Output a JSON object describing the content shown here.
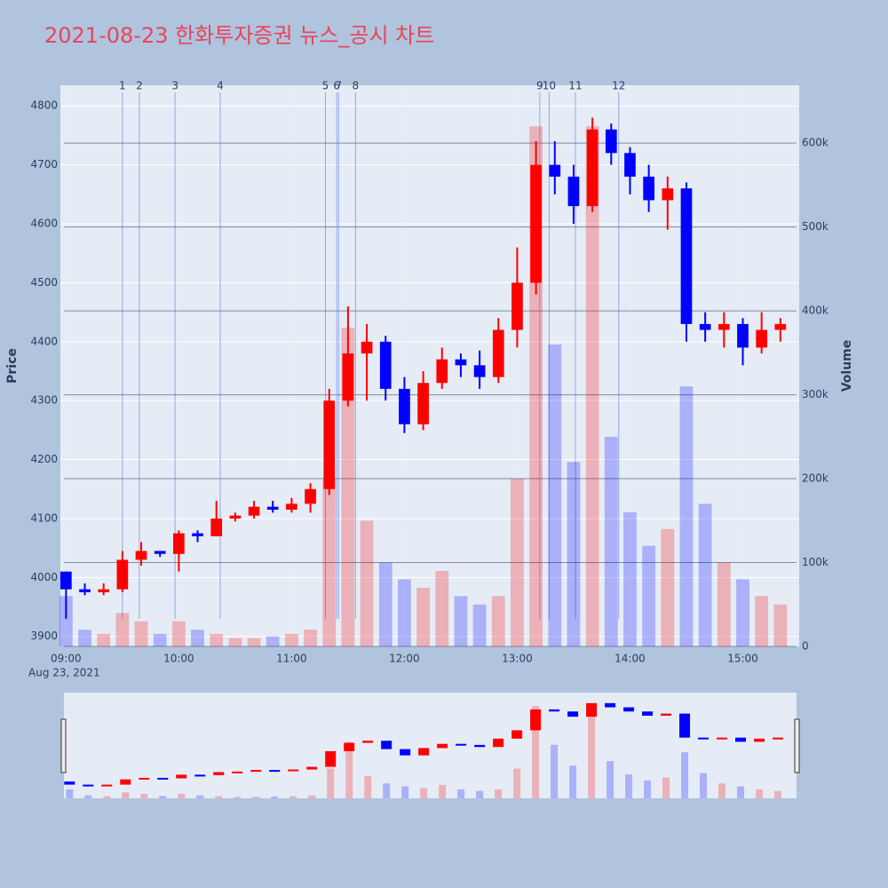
{
  "chart_data": {
    "type": "candlestick",
    "title": "2021-08-23 한화투자증권 뉴스_공시 차트",
    "y_label": "Price",
    "y2_label": "Volume",
    "date_label": "Aug 23, 2021",
    "increasing_color": "#ff0000",
    "decreasing_color": "#0000ff",
    "x": [
      "09:00",
      "09:10",
      "09:20",
      "09:30",
      "09:40",
      "09:50",
      "10:00",
      "10:10",
      "10:20",
      "10:30",
      "10:40",
      "10:50",
      "11:00",
      "11:10",
      "11:20",
      "11:30",
      "11:40",
      "11:50",
      "12:00",
      "12:10",
      "12:20",
      "12:30",
      "12:40",
      "12:50",
      "13:00",
      "13:10",
      "13:20",
      "13:30",
      "13:40",
      "13:50",
      "14:00",
      "14:10",
      "14:20",
      "14:30",
      "14:40",
      "14:50",
      "15:00",
      "15:10",
      "15:20"
    ],
    "open": [
      4010,
      3980,
      3975,
      3980,
      4030,
      4045,
      4040,
      4075,
      4070,
      4100,
      4105,
      4120,
      4115,
      4125,
      4150,
      4300,
      4380,
      4400,
      4320,
      4260,
      4330,
      4370,
      4360,
      4340,
      4420,
      4500,
      4700,
      4680,
      4630,
      4760,
      4720,
      4680,
      4640,
      4660,
      4430,
      4420,
      4430,
      4390,
      4420
    ],
    "high": [
      4010,
      3990,
      3990,
      4045,
      4060,
      4045,
      4080,
      4080,
      4130,
      4110,
      4130,
      4130,
      4135,
      4160,
      4320,
      4460,
      4430,
      4410,
      4340,
      4350,
      4390,
      4380,
      4385,
      4440,
      4560,
      4740,
      4740,
      4700,
      4780,
      4770,
      4730,
      4700,
      4680,
      4670,
      4450,
      4450,
      4440,
      4450,
      4440
    ],
    "low": [
      3930,
      3970,
      3970,
      3975,
      4020,
      4035,
      4010,
      4060,
      4070,
      4095,
      4100,
      4110,
      4110,
      4110,
      4140,
      4290,
      4300,
      4300,
      4245,
      4250,
      4320,
      4340,
      4320,
      4330,
      4390,
      4480,
      4650,
      4600,
      4620,
      4700,
      4650,
      4620,
      4590,
      4400,
      4400,
      4390,
      4360,
      4380,
      4400
    ],
    "close": [
      3980,
      3975,
      3980,
      4030,
      4045,
      4040,
      4075,
      4070,
      4100,
      4105,
      4120,
      4115,
      4125,
      4150,
      4300,
      4380,
      4400,
      4320,
      4260,
      4330,
      4370,
      4360,
      4340,
      4420,
      4500,
      4700,
      4680,
      4630,
      4760,
      4720,
      4680,
      4640,
      4660,
      4430,
      4420,
      4430,
      4390,
      4420,
      4430
    ],
    "volume": [
      60000,
      20000,
      15000,
      40000,
      30000,
      15000,
      30000,
      20000,
      15000,
      10000,
      10000,
      12000,
      15000,
      20000,
      200000,
      380000,
      150000,
      100000,
      80000,
      70000,
      90000,
      60000,
      50000,
      60000,
      200000,
      620000,
      360000,
      220000,
      620000,
      250000,
      160000,
      120000,
      140000,
      310000,
      170000,
      100000,
      80000,
      60000,
      50000
    ],
    "news": [
      {
        "label": "1",
        "time": "09:30"
      },
      {
        "label": "2",
        "time": "09:39"
      },
      {
        "label": "3",
        "time": "09:58"
      },
      {
        "label": "4",
        "time": "10:22"
      },
      {
        "label": "5",
        "time": "11:18"
      },
      {
        "label": "6",
        "time": "11:24"
      },
      {
        "label": "7",
        "time": "11:25"
      },
      {
        "label": "8",
        "time": "11:34"
      },
      {
        "label": "9",
        "time": "13:12"
      },
      {
        "label": "10",
        "time": "13:17"
      },
      {
        "label": "11",
        "time": "13:31"
      },
      {
        "label": "12",
        "time": "13:54"
      }
    ],
    "xlim": [
      "08:57",
      "15:30"
    ],
    "xticks": [
      "09:00",
      "10:00",
      "11:00",
      "12:00",
      "13:00",
      "14:00",
      "15:00"
    ],
    "ylim": [
      3883,
      4835
    ],
    "yticks": [
      3900,
      4000,
      4100,
      4200,
      4300,
      4400,
      4500,
      4600,
      4700,
      4800
    ],
    "y2lim": [
      0,
      669000
    ],
    "y2ticks": [
      0,
      {
        "value": 100000,
        "label": "100k"
      },
      {
        "value": 200000,
        "label": "200k"
      },
      {
        "value": 300000,
        "label": "300k"
      },
      {
        "value": 400000,
        "label": "400k"
      },
      {
        "value": 500000,
        "label": "500k"
      },
      {
        "value": 600000,
        "label": "600k"
      }
    ],
    "grid": true
  }
}
